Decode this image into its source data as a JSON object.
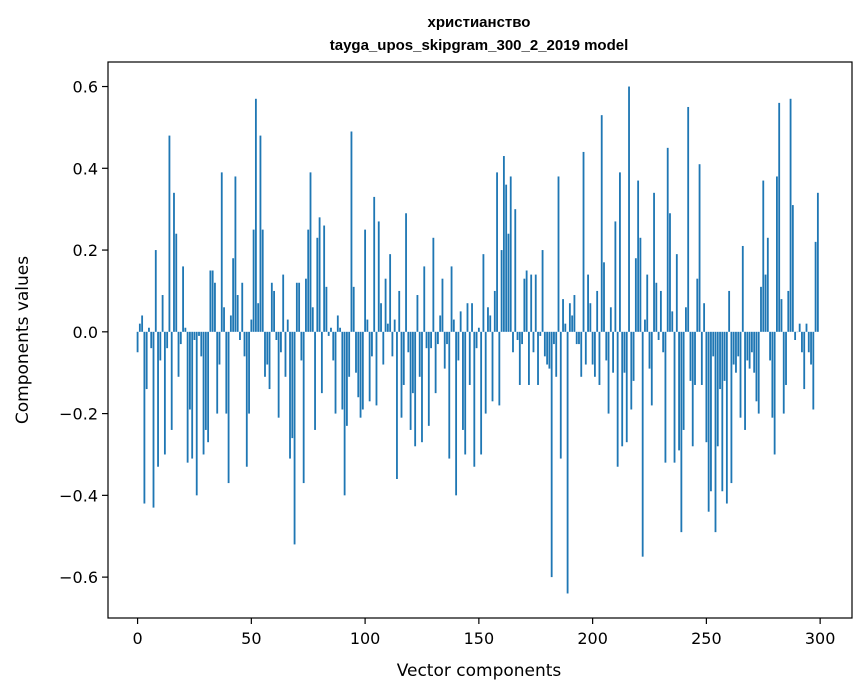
{
  "chart_data": {
    "type": "bar",
    "title": "христианство",
    "subtitle": "tayga_upos_skipgram_300_2_2019 model",
    "xlabel": "Vector components",
    "ylabel": "Components values",
    "xlim": [
      -13,
      314
    ],
    "ylim": [
      -0.7,
      0.66
    ],
    "xticks": [
      0,
      50,
      100,
      150,
      200,
      250,
      300
    ],
    "yticks": [
      -0.6,
      -0.4,
      -0.2,
      0.0,
      0.2,
      0.4,
      0.6
    ],
    "ytick_labels": [
      "−0.6",
      "−0.4",
      "−0.2",
      "0.0",
      "0.2",
      "0.4",
      "0.6"
    ],
    "xtick_labels": [
      "0",
      "50",
      "100",
      "150",
      "200",
      "250",
      "300"
    ],
    "grid": false,
    "color": "#1f77b4",
    "values": [
      -0.05,
      0.02,
      0.04,
      -0.42,
      -0.14,
      0.01,
      -0.04,
      -0.43,
      0.2,
      -0.33,
      -0.07,
      0.09,
      -0.3,
      -0.04,
      0.48,
      -0.24,
      0.34,
      0.24,
      -0.11,
      -0.03,
      0.16,
      0.01,
      -0.32,
      -0.19,
      -0.31,
      -0.02,
      -0.4,
      -0.01,
      -0.06,
      -0.3,
      -0.24,
      -0.27,
      0.15,
      0.15,
      0.12,
      -0.2,
      -0.08,
      0.39,
      0.06,
      -0.2,
      -0.37,
      0.04,
      0.18,
      0.38,
      0.09,
      -0.02,
      0.12,
      -0.06,
      -0.33,
      -0.2,
      0.03,
      0.25,
      0.57,
      0.07,
      0.48,
      0.25,
      -0.11,
      -0.08,
      -0.14,
      0.12,
      0.1,
      -0.02,
      -0.21,
      -0.05,
      0.14,
      -0.11,
      0.03,
      -0.31,
      -0.26,
      -0.52,
      0.12,
      0.12,
      -0.07,
      -0.37,
      0.13,
      0.25,
      0.39,
      0.06,
      -0.24,
      0.23,
      0.28,
      -0.15,
      0.26,
      0.11,
      -0.01,
      0.01,
      -0.07,
      -0.2,
      0.04,
      0.01,
      -0.19,
      -0.4,
      -0.23,
      -0.11,
      0.49,
      0.11,
      -0.1,
      -0.16,
      -0.21,
      -0.19,
      0.25,
      0.03,
      -0.17,
      -0.06,
      0.33,
      -0.18,
      0.27,
      0.07,
      -0.08,
      0.13,
      0.02,
      0.19,
      -0.06,
      0.03,
      -0.36,
      0.1,
      -0.21,
      -0.13,
      0.29,
      -0.05,
      -0.24,
      -0.15,
      -0.28,
      0.09,
      -0.11,
      -0.27,
      0.16,
      -0.04,
      -0.23,
      -0.04,
      0.23,
      -0.15,
      -0.03,
      0.04,
      0.13,
      -0.09,
      -0.03,
      -0.31,
      0.16,
      0.03,
      -0.4,
      -0.07,
      0.05,
      -0.24,
      -0.3,
      0.07,
      -0.13,
      0.07,
      -0.33,
      -0.04,
      0.01,
      -0.3,
      0.19,
      -0.2,
      0.06,
      0.04,
      -0.17,
      0.1,
      0.39,
      -0.18,
      0.2,
      0.43,
      0.36,
      0.24,
      0.38,
      -0.05,
      0.3,
      -0.02,
      -0.13,
      -0.03,
      0.13,
      0.15,
      -0.13,
      0.14,
      -0.05,
      0.14,
      -0.13,
      -0.01,
      0.2,
      -0.06,
      -0.08,
      -0.09,
      -0.6,
      -0.03,
      -0.11,
      0.38,
      -0.31,
      0.08,
      0.02,
      -0.64,
      0.07,
      0.04,
      0.09,
      -0.03,
      -0.03,
      -0.11,
      0.44,
      -0.08,
      0.14,
      0.07,
      -0.08,
      -0.11,
      0.1,
      -0.13,
      0.53,
      0.17,
      -0.07,
      -0.2,
      0.06,
      -0.1,
      0.27,
      -0.33,
      0.39,
      -0.28,
      -0.1,
      -0.27,
      0.6,
      -0.19,
      -0.12,
      0.18,
      0.37,
      0.23,
      -0.55,
      0.03,
      0.14,
      -0.09,
      -0.18,
      0.34,
      0.12,
      -0.02,
      0.1,
      -0.05,
      -0.32,
      0.45,
      0.29,
      0.05,
      -0.32,
      0.19,
      -0.29,
      -0.49,
      -0.24,
      0.06,
      0.55,
      -0.12,
      -0.28,
      -0.13,
      0.13,
      0.41,
      -0.13,
      0.07,
      -0.27,
      -0.44,
      -0.39,
      -0.06,
      -0.49,
      -0.28,
      -0.14,
      -0.39,
      -0.12,
      -0.42,
      0.1,
      -0.37,
      -0.08,
      -0.1,
      -0.06,
      -0.21,
      0.21,
      -0.24,
      -0.07,
      -0.09,
      -0.05,
      -0.1,
      -0.17,
      -0.2,
      0.11,
      0.37,
      0.14,
      0.23,
      -0.07,
      -0.21,
      -0.3,
      0.38,
      0.56,
      0.08,
      -0.2,
      -0.13,
      0.1,
      0.57,
      0.31,
      -0.02,
      0.0,
      0.02,
      -0.05,
      -0.14,
      0.02,
      -0.05,
      -0.08,
      -0.19,
      0.22,
      0.34
    ]
  }
}
